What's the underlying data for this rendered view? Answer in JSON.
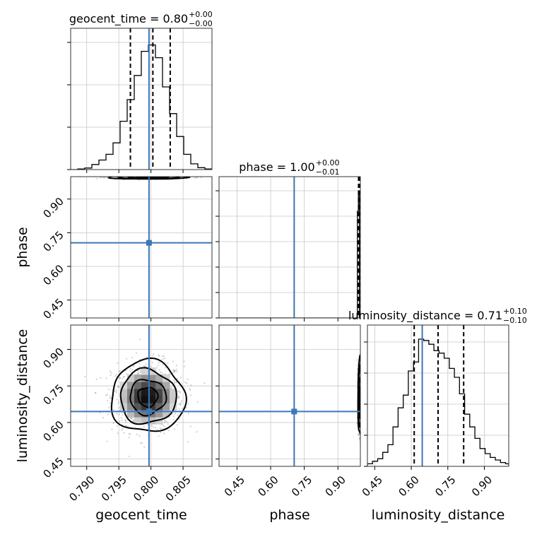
{
  "chart_data": {
    "type": "corner",
    "parameters": [
      "geocent_time",
      "phase",
      "luminosity_distance"
    ],
    "titles": [
      {
        "param": "geocent_time",
        "prefix": "geocent_time = ",
        "value": "0.80",
        "plus": "+0.00",
        "minus": "−0.00"
      },
      {
        "param": "phase",
        "prefix": "phase = ",
        "value": "1.00",
        "plus": "+0.00",
        "minus": "−0.01"
      },
      {
        "param": "luminosity_distance",
        "prefix": "luminosity_distance = ",
        "value": "0.71",
        "plus": "+0.10",
        "minus": "−0.10"
      }
    ],
    "axes": {
      "geocent_time": {
        "range": [
          0.7875,
          0.8095
        ],
        "ticks": [
          0.79,
          0.795,
          0.8,
          0.805
        ],
        "tick_labels": [
          "0.790",
          "0.795",
          "0.800",
          "0.805"
        ]
      },
      "phase": {
        "range": [
          0.37,
          1.0
        ],
        "ticks": [
          0.45,
          0.6,
          0.75,
          0.9
        ],
        "tick_labels": [
          "0.45",
          "0.60",
          "0.75",
          "0.90"
        ]
      },
      "luminosity_distance": {
        "range": [
          0.42,
          1.0
        ],
        "ticks": [
          0.45,
          0.6,
          0.75,
          0.9
        ],
        "tick_labels": [
          "0.45",
          "0.60",
          "0.75",
          "0.90"
        ]
      }
    },
    "truths": {
      "geocent_time": 0.7997,
      "phase": 0.705,
      "luminosity_distance": 0.645
    },
    "quantiles": {
      "geocent_time": [
        0.7968,
        0.8003,
        0.803
      ],
      "phase": [
        0.992,
        0.998,
        0.9995
      ],
      "luminosity_distance": [
        0.612,
        0.71,
        0.815
      ]
    },
    "histograms": {
      "geocent_time": {
        "edges": [
          0.7875,
          0.7886,
          0.7897,
          0.7908,
          0.7919,
          0.793,
          0.7941,
          0.7952,
          0.7963,
          0.7974,
          0.7985,
          0.7996,
          0.8007,
          0.8018,
          0.8029,
          0.804,
          0.8051,
          0.8062,
          0.8073,
          0.8084,
          0.8095
        ],
        "counts": [
          0.0,
          0.005,
          0.012,
          0.04,
          0.075,
          0.12,
          0.21,
          0.38,
          0.55,
          0.74,
          0.93,
          0.98,
          0.88,
          0.65,
          0.44,
          0.26,
          0.12,
          0.045,
          0.015,
          0.005
        ]
      },
      "phase": {
        "edges": [
          0.37,
          0.9868,
          0.9913,
          0.9958,
          1.0
        ],
        "counts": [
          0.0,
          0.84,
          1.0,
          0.0
        ]
      },
      "luminosity_distance": {
        "edges": [
          0.42,
          0.441,
          0.462,
          0.483,
          0.504,
          0.525,
          0.546,
          0.567,
          0.588,
          0.609,
          0.63,
          0.651,
          0.672,
          0.693,
          0.714,
          0.735,
          0.756,
          0.777,
          0.798,
          0.819,
          0.84,
          0.861,
          0.882,
          0.903,
          0.924,
          0.945,
          0.966,
          0.987,
          1.0
        ],
        "counts": [
          0.02,
          0.04,
          0.06,
          0.11,
          0.17,
          0.31,
          0.46,
          0.56,
          0.75,
          0.82,
          1.0,
          0.99,
          0.96,
          0.91,
          0.89,
          0.85,
          0.77,
          0.7,
          0.57,
          0.41,
          0.31,
          0.22,
          0.14,
          0.1,
          0.07,
          0.05,
          0.03,
          0.02
        ]
      }
    },
    "density_2d": {
      "geocent_time_vs_luminosity_distance": {
        "center": [
          0.7995,
          0.705
        ],
        "sigma": [
          0.0028,
          0.072
        ]
      },
      "geocent_time_vs_phase": {
        "center": [
          0.7995,
          0.998
        ],
        "sigma": [
          0.0028,
          0.004
        ]
      },
      "phase_vs_luminosity_distance": {
        "center": [
          0.998,
          0.705
        ],
        "sigma": [
          0.004,
          0.072
        ]
      }
    },
    "contour_levels": [
      0.39,
      0.86,
      0.99,
      1.0
    ],
    "colors": {
      "truth": "#3b78b5",
      "hist": "#000000",
      "density_max": "#000000",
      "grid": "#c8c8c8"
    }
  }
}
